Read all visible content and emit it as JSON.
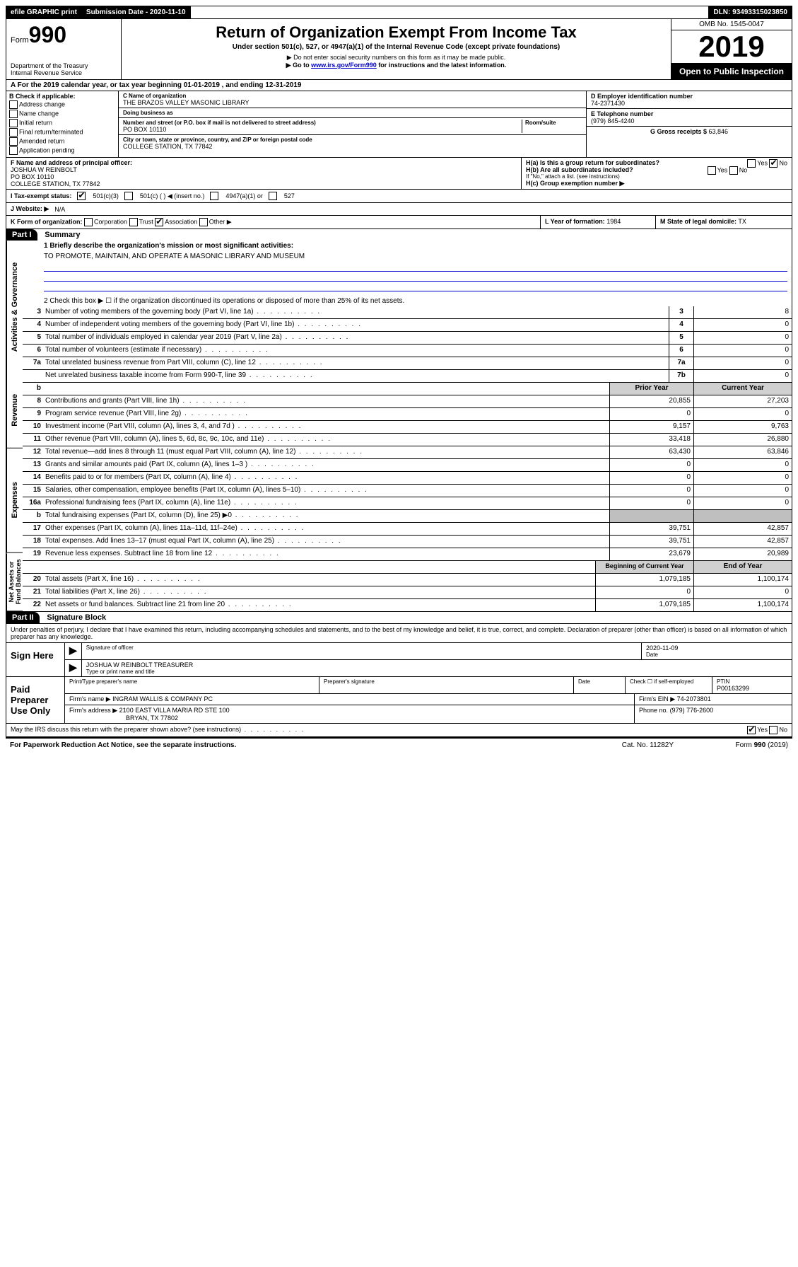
{
  "topbar": {
    "efile": "efile GRAPHIC print",
    "submission_label": "Submission Date - 2020-11-10",
    "dln_label": "DLN: 93493315023850"
  },
  "header": {
    "form_prefix": "Form",
    "form_number": "990",
    "dept": "Department of the Treasury\nInternal Revenue Service",
    "title": "Return of Organization Exempt From Income Tax",
    "subtitle": "Under section 501(c), 527, or 4947(a)(1) of the Internal Revenue Code (except private foundations)",
    "note1": "▶ Do not enter social security numbers on this form as it may be made public.",
    "note2_pre": "▶ Go to ",
    "note2_link": "www.irs.gov/Form990",
    "note2_post": " for instructions and the latest information.",
    "omb": "OMB No. 1545-0047",
    "year": "2019",
    "open": "Open to Public Inspection"
  },
  "rowA": "A For the 2019 calendar year, or tax year beginning 01-01-2019    , and ending 12-31-2019",
  "boxB": {
    "title": "B Check if applicable:",
    "items": [
      "Address change",
      "Name change",
      "Initial return",
      "Final return/terminated",
      "Amended return",
      "Application pending"
    ]
  },
  "boxC": {
    "name_lbl": "C Name of organization",
    "name": "THE BRAZOS VALLEY MASONIC LIBRARY",
    "dba_lbl": "Doing business as",
    "dba": "",
    "addr_lbl": "Number and street (or P.O. box if mail is not delivered to street address)",
    "room_lbl": "Room/suite",
    "addr": "PO BOX 10110",
    "city_lbl": "City or town, state or province, country, and ZIP or foreign postal code",
    "city": "COLLEGE STATION, TX  77842"
  },
  "boxD": {
    "lbl": "D Employer identification number",
    "val": "74-2371430"
  },
  "boxE": {
    "lbl": "E Telephone number",
    "val": "(979) 845-4240"
  },
  "boxG": {
    "lbl": "G Gross receipts $",
    "val": "63,846"
  },
  "boxF": {
    "lbl": "F  Name and address of principal officer:",
    "name": "JOSHUA W REINBOLT",
    "addr1": "PO BOX 10110",
    "addr2": "COLLEGE STATION, TX  77842"
  },
  "boxH": {
    "a": "H(a)  Is this a group return for subordinates?",
    "b": "H(b)  Are all subordinates included?",
    "b_note": "If \"No,\" attach a list. (see instructions)",
    "c": "H(c)  Group exemption number ▶"
  },
  "taxstatus": {
    "lbl": "I    Tax-exempt status:",
    "o1": "501(c)(3)",
    "o2": "501(c) (   ) ◀ (insert no.)",
    "o3": "4947(a)(1) or",
    "o4": "527"
  },
  "websiteJ": {
    "lbl": "J   Website: ▶",
    "val": "N/A"
  },
  "rowK": {
    "k": "K Form of organization:",
    "k_opts": [
      "Corporation",
      "Trust",
      "Association",
      "Other ▶"
    ],
    "k_checked": 2,
    "l_lbl": "L Year of formation:",
    "l_val": "1984",
    "m_lbl": "M State of legal domicile:",
    "m_val": "TX"
  },
  "part1": {
    "header": "Part I",
    "title": "Summary",
    "q1": "1  Briefly describe the organization's mission or most significant activities:",
    "mission": "TO PROMOTE, MAINTAIN, AND OPERATE A MASONIC LIBRARY AND MUSEUM",
    "q2": "2  Check this box ▶ ☐  if the organization discontinued its operations or disposed of more than 25% of its net assets.",
    "lines_gov": [
      {
        "n": "3",
        "t": "Number of voting members of the governing body (Part VI, line 1a)",
        "box": "3",
        "v": "8"
      },
      {
        "n": "4",
        "t": "Number of independent voting members of the governing body (Part VI, line 1b)",
        "box": "4",
        "v": "0"
      },
      {
        "n": "5",
        "t": "Total number of individuals employed in calendar year 2019 (Part V, line 2a)",
        "box": "5",
        "v": "0"
      },
      {
        "n": "6",
        "t": "Total number of volunteers (estimate if necessary)",
        "box": "6",
        "v": "0"
      },
      {
        "n": "7a",
        "t": "Total unrelated business revenue from Part VIII, column (C), line 12",
        "box": "7a",
        "v": "0"
      },
      {
        "n": "",
        "t": "Net unrelated business taxable income from Form 990-T, line 39",
        "box": "7b",
        "v": "0"
      }
    ],
    "col_headers": {
      "b": "b",
      "prior": "Prior Year",
      "current": "Current Year"
    },
    "lines_rev": [
      {
        "n": "8",
        "t": "Contributions and grants (Part VIII, line 1h)",
        "p": "20,855",
        "c": "27,203"
      },
      {
        "n": "9",
        "t": "Program service revenue (Part VIII, line 2g)",
        "p": "0",
        "c": "0"
      },
      {
        "n": "10",
        "t": "Investment income (Part VIII, column (A), lines 3, 4, and 7d )",
        "p": "9,157",
        "c": "9,763"
      },
      {
        "n": "11",
        "t": "Other revenue (Part VIII, column (A), lines 5, 6d, 8c, 9c, 10c, and 11e)",
        "p": "33,418",
        "c": "26,880"
      },
      {
        "n": "12",
        "t": "Total revenue—add lines 8 through 11 (must equal Part VIII, column (A), line 12)",
        "p": "63,430",
        "c": "63,846"
      }
    ],
    "lines_exp": [
      {
        "n": "13",
        "t": "Grants and similar amounts paid (Part IX, column (A), lines 1–3 )",
        "p": "0",
        "c": "0"
      },
      {
        "n": "14",
        "t": "Benefits paid to or for members (Part IX, column (A), line 4)",
        "p": "0",
        "c": "0"
      },
      {
        "n": "15",
        "t": "Salaries, other compensation, employee benefits (Part IX, column (A), lines 5–10)",
        "p": "0",
        "c": "0"
      },
      {
        "n": "16a",
        "t": "Professional fundraising fees (Part IX, column (A), line 11e)",
        "p": "0",
        "c": "0"
      },
      {
        "n": "b",
        "t": "Total fundraising expenses (Part IX, column (D), line 25) ▶0",
        "p": "",
        "c": "",
        "shade": true
      },
      {
        "n": "17",
        "t": "Other expenses (Part IX, column (A), lines 11a–11d, 11f–24e)",
        "p": "39,751",
        "c": "42,857"
      },
      {
        "n": "18",
        "t": "Total expenses. Add lines 13–17 (must equal Part IX, column (A), line 25)",
        "p": "39,751",
        "c": "42,857"
      },
      {
        "n": "19",
        "t": "Revenue less expenses. Subtract line 18 from line 12",
        "p": "23,679",
        "c": "20,989"
      }
    ],
    "col_headers2": {
      "prior": "Beginning of Current Year",
      "current": "End of Year"
    },
    "lines_net": [
      {
        "n": "20",
        "t": "Total assets (Part X, line 16)",
        "p": "1,079,185",
        "c": "1,100,174"
      },
      {
        "n": "21",
        "t": "Total liabilities (Part X, line 26)",
        "p": "0",
        "c": "0"
      },
      {
        "n": "22",
        "t": "Net assets or fund balances. Subtract line 21 from line 20",
        "p": "1,079,185",
        "c": "1,100,174"
      }
    ],
    "vlabels": [
      "Activities & Governance",
      "Revenue",
      "Expenses",
      "Net Assets or Fund Balances"
    ]
  },
  "part2": {
    "header": "Part II",
    "title": "Signature Block",
    "declare": "Under penalties of perjury, I declare that I have examined this return, including accompanying schedules and statements, and to the best of my knowledge and belief, it is true, correct, and complete. Declaration of preparer (other than officer) is based on all information of which preparer has any knowledge.",
    "sign_here": "Sign Here",
    "sig_officer": "Signature of officer",
    "sig_date": "2020-11-09",
    "date_lbl": "Date",
    "officer_name": "JOSHUA W REINBOLT TREASURER",
    "officer_sub": "Type or print name and title",
    "paid": "Paid Preparer Use Only",
    "pp_name_lbl": "Print/Type preparer's name",
    "pp_sig_lbl": "Preparer's signature",
    "pp_date_lbl": "Date",
    "pp_check": "Check ☐ if self-employed",
    "ptin_lbl": "PTIN",
    "ptin": "P00163299",
    "firm_name_lbl": "Firm's name    ▶",
    "firm_name": "INGRAM WALLIS & COMPANY PC",
    "firm_ein_lbl": "Firm's EIN ▶",
    "firm_ein": "74-2073801",
    "firm_addr_lbl": "Firm's address ▶",
    "firm_addr": "2100 EAST VILLA MARIA RD STE 100",
    "firm_city": "BRYAN, TX  77802",
    "phone_lbl": "Phone no.",
    "phone": "(979) 776-2600",
    "discuss": "May the IRS discuss this return with the preparer shown above? (see instructions)"
  },
  "footer": {
    "pra": "For Paperwork Reduction Act Notice, see the separate instructions.",
    "cat": "Cat. No. 11282Y",
    "form": "Form 990 (2019)"
  }
}
